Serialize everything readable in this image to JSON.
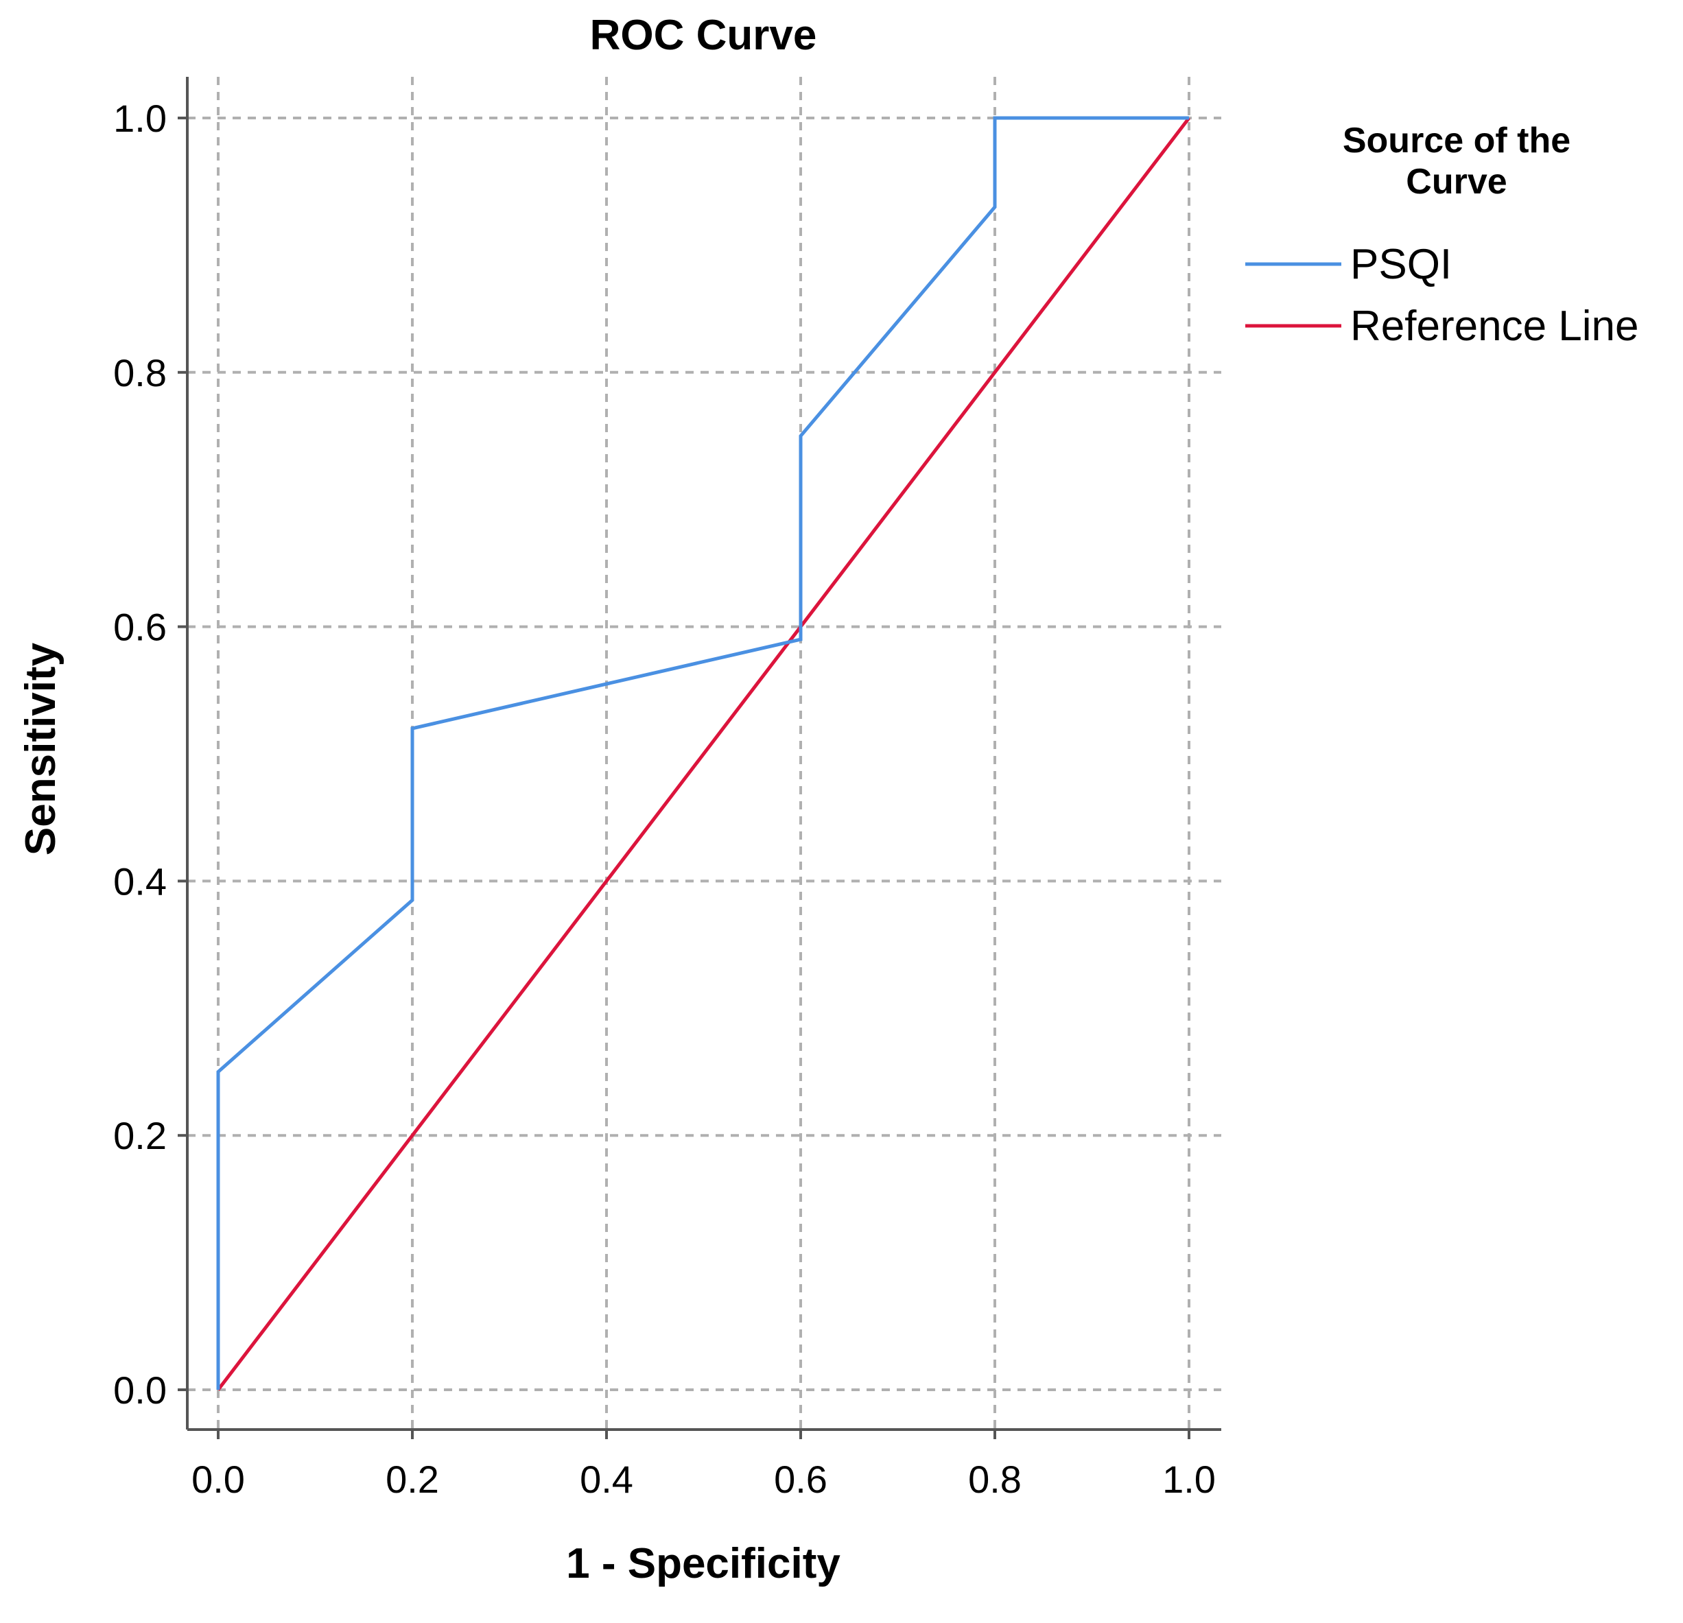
{
  "chart_data": {
    "type": "line",
    "title": "ROC Curve",
    "xlabel": "1 - Specificity",
    "ylabel": "Sensitivity",
    "xlim": [
      0.0,
      1.0
    ],
    "ylim": [
      0.0,
      1.0
    ],
    "x_ticks": [
      "0.0",
      "0.2",
      "0.4",
      "0.6",
      "0.8",
      "1.0"
    ],
    "y_ticks": [
      "0.0",
      "0.2",
      "0.4",
      "0.6",
      "0.8",
      "1.0"
    ],
    "grid": true,
    "legend": {
      "title": [
        "Source of the",
        "Curve"
      ],
      "placement": "top-right, outside plot"
    },
    "series": [
      {
        "name": "PSQI",
        "color": "#4a90e2",
        "points": [
          [
            0.0,
            0.0
          ],
          [
            0.0,
            0.25
          ],
          [
            0.2,
            0.385
          ],
          [
            0.2,
            0.52
          ],
          [
            0.6,
            0.59
          ],
          [
            0.6,
            0.75
          ],
          [
            0.8,
            0.93
          ],
          [
            0.8,
            1.0
          ],
          [
            1.0,
            1.0
          ]
        ]
      },
      {
        "name": "Reference Line",
        "color": "#dc143c",
        "points": [
          [
            0.0,
            0.0
          ],
          [
            1.0,
            1.0
          ]
        ]
      }
    ]
  }
}
